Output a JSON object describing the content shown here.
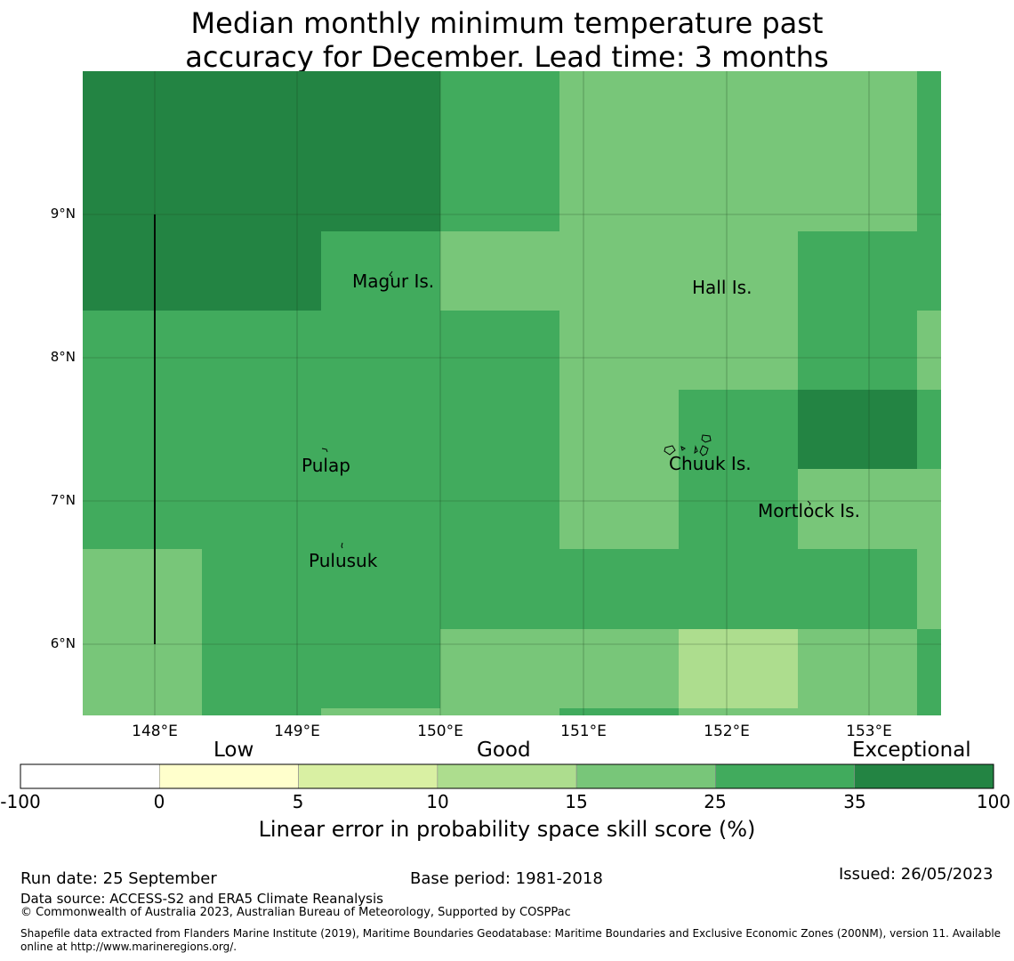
{
  "title": {
    "line1": "Median monthly minimum temperature past",
    "line2": "accuracy for December. Lead time: 3 months"
  },
  "map": {
    "lon_range": [
      147.5,
      153.5
    ],
    "lat_range": [
      5.5,
      10.0
    ],
    "lat_labels": [
      "9°N",
      "8°N",
      "7°N",
      "6°N"
    ],
    "lat_values": [
      9,
      8,
      7,
      6
    ],
    "lon_labels": [
      "148°E",
      "149°E",
      "150°E",
      "151°E",
      "152°E",
      "153°E"
    ],
    "lon_values": [
      148,
      149,
      150,
      151,
      152,
      153
    ],
    "places": [
      {
        "name": "Magur Is.",
        "lon": 149.75,
        "lat": 8.5
      },
      {
        "name": "Hall Is.",
        "lon": 151.98,
        "lat": 8.45
      },
      {
        "name": "Pulap",
        "lon": 149.2,
        "lat": 7.22
      },
      {
        "name": "Chuuk Is.",
        "lon": 151.9,
        "lat": 7.25
      },
      {
        "name": "Mortlock Is.",
        "lon": 152.6,
        "lat": 6.92
      },
      {
        "name": "Pulusuk",
        "lon": 149.33,
        "lat": 6.57
      }
    ],
    "colors": {
      "c1": "#ffffcc",
      "c2": "#d9f0a3",
      "c3": "#addd8e",
      "c4": "#78c679",
      "c5": "#41ab5d",
      "c6": "#238443"
    }
  },
  "colorbar": {
    "categories": [
      "Low",
      "Good",
      "Exceptional"
    ],
    "ticks": [
      "-100",
      "0",
      "5",
      "10",
      "15",
      "25",
      "35",
      "100"
    ],
    "colors": [
      "#ffffff",
      "#ffffcc",
      "#d9f0a3",
      "#addd8e",
      "#78c679",
      "#41ab5d",
      "#238443"
    ],
    "label": "Linear error in probability space skill score (%)"
  },
  "footer": {
    "run_date": "Run date: 25 September",
    "base_period": "Base period: 1981-2018",
    "issued": "Issued: 26/05/2023",
    "data_source": "Data source: ACCESS-S2 and ERA5 Climate Reanalysis",
    "copyright": "© Commonwealth of Australia 2023, Australian Bureau of Meteorology, Supported by COSPPac",
    "shapefile": "Shapefile data extracted from Flanders Marine Institute (2019), Maritime Boundaries Geodatabase: Maritime Boundaries and Exclusive Economic Zones (200NM), version 11. Available online at http://www.marineregions.org/."
  }
}
